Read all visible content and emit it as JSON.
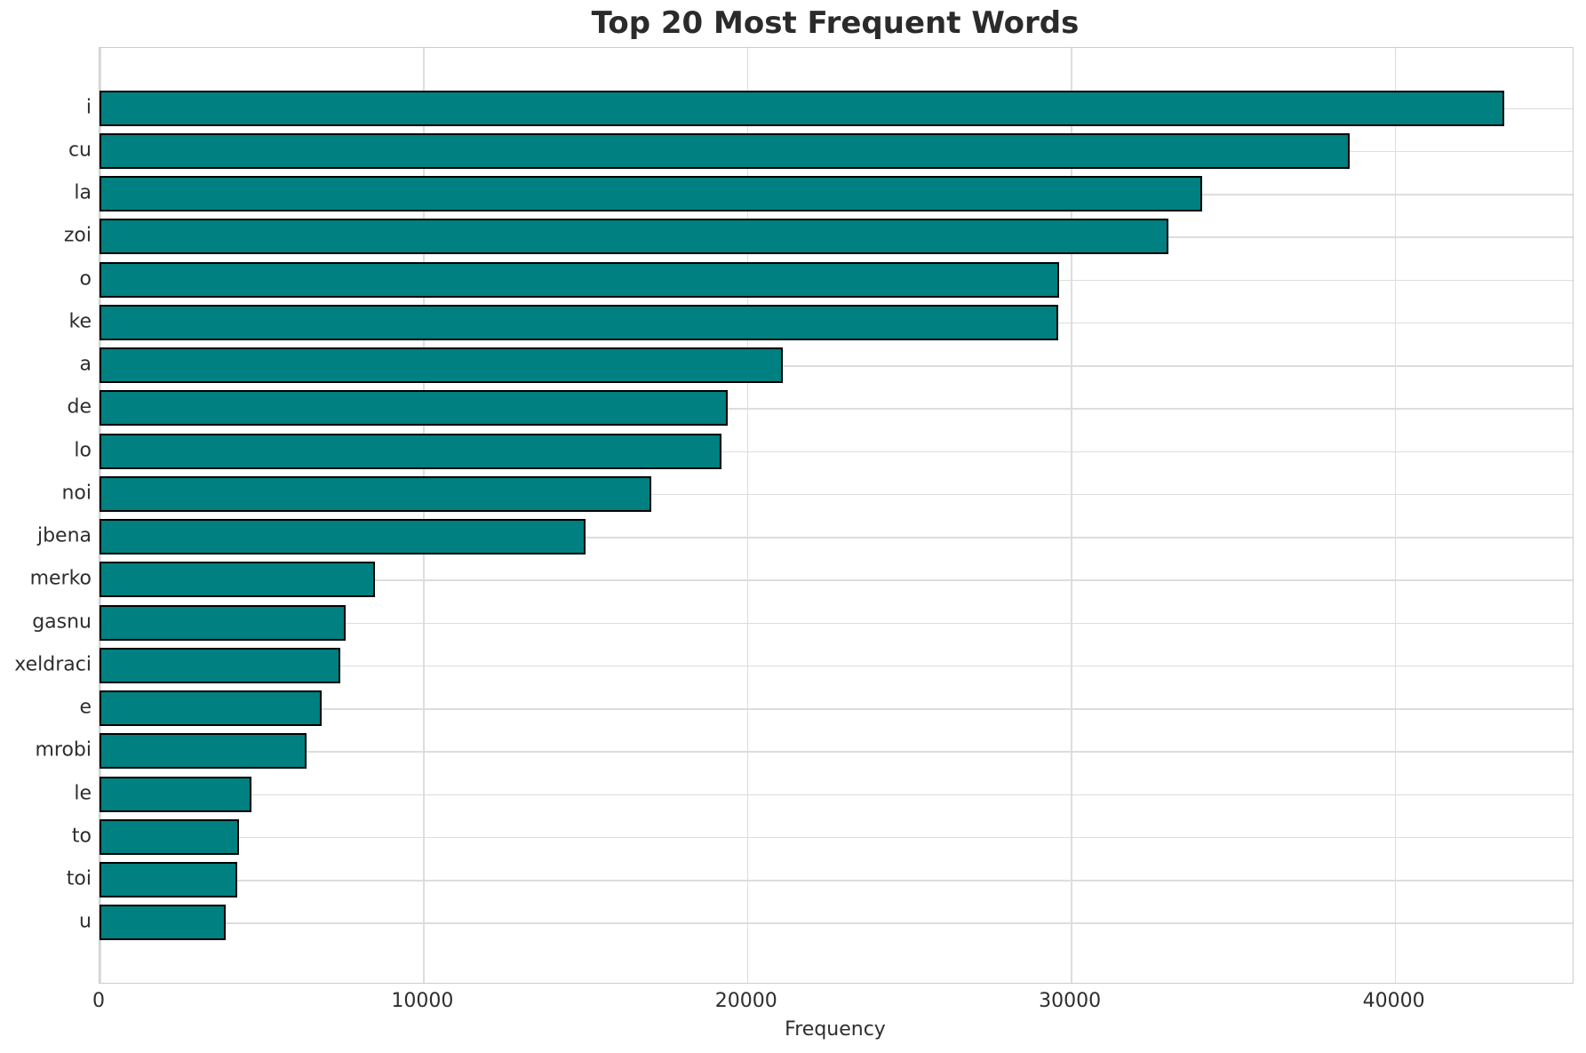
{
  "chart_data": {
    "type": "bar",
    "orientation": "horizontal",
    "title": "Top 20 Most Frequent Words",
    "xlabel": "Frequency",
    "ylabel": "",
    "categories": [
      "i",
      "cu",
      "la",
      "zoi",
      "o",
      "ke",
      "a",
      "de",
      "lo",
      "noi",
      "jbena",
      "merko",
      "gasnu",
      "xeldraci",
      "e",
      "mrobi",
      "le",
      "to",
      "toi",
      "u"
    ],
    "values": [
      43400,
      38600,
      34050,
      33000,
      29650,
      29600,
      21100,
      19400,
      19200,
      17050,
      15000,
      8500,
      7600,
      7450,
      6850,
      6400,
      4700,
      4300,
      4250,
      3900
    ],
    "xlim": [
      0,
      45500
    ],
    "xticks": [
      0,
      10000,
      20000,
      30000,
      40000
    ],
    "grid": true,
    "legend": "none",
    "bar_color": "#008080",
    "bar_edge_color": "#000000",
    "grid_color": "#dddddd",
    "spine_color": "#cccccc",
    "text_color": "#2e2e2e"
  }
}
